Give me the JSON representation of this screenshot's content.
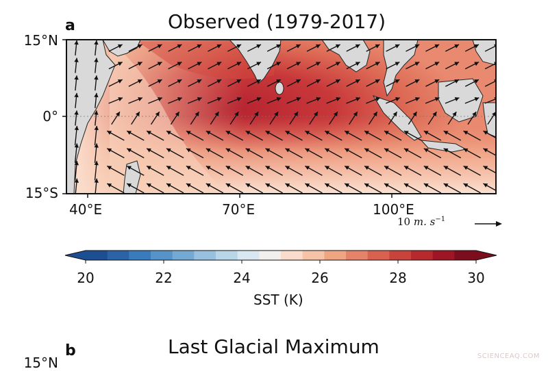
{
  "panel_a": {
    "letter": "a",
    "title": "Observed (1979-2017)",
    "lat_labels": [
      "15°N",
      "0°",
      "15°S"
    ],
    "lon_labels": [
      "40°E",
      "70°E",
      "100°E"
    ],
    "reference_vector": {
      "value": "10",
      "unit": "m. s",
      "exponent": "−1"
    }
  },
  "colorbar": {
    "ticks": [
      "20",
      "22",
      "24",
      "26",
      "28",
      "30"
    ],
    "label": "SST  (K)",
    "range": [
      20,
      30
    ],
    "colors": [
      "#1e4e92",
      "#2a64a6",
      "#3a7bbb",
      "#5593c8",
      "#74a9d3",
      "#97c1de",
      "#b9d6e8",
      "#d9e8f0",
      "#f1f0ee",
      "#f9dccb",
      "#f6c3a6",
      "#f0a582",
      "#e5826a",
      "#d8624f",
      "#c8433b",
      "#b62a2e",
      "#9e1625",
      "#7c0d1c"
    ]
  },
  "panel_b": {
    "letter": "b",
    "title": "Last Glacial Maximum",
    "lat_label_partial": "15°N"
  },
  "watermark": "SCIENCEAQ.COM",
  "map_colors": {
    "land": "#d9d9d9",
    "sst_cold": "#fbe1d2",
    "sst_mid": "#ef9f7f",
    "sst_warm": "#d2453d",
    "sst_hot": "#b52330"
  }
}
